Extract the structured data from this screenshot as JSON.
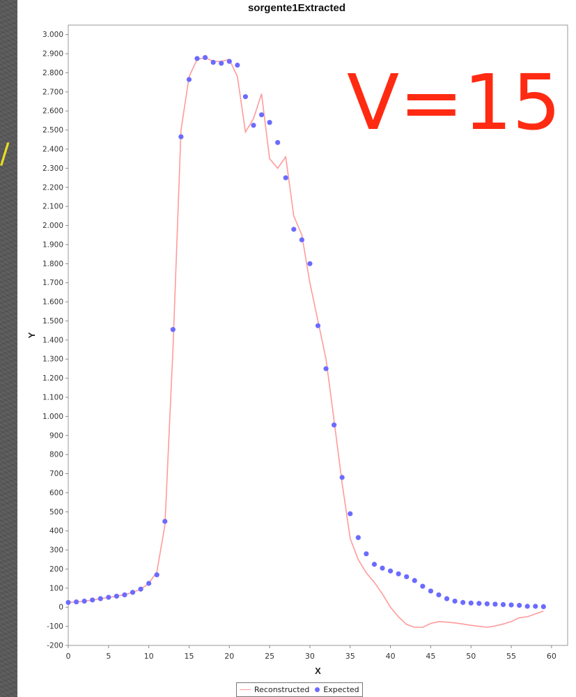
{
  "chart_data": {
    "type": "line",
    "title": "sorgente1Extracted",
    "xlabel": "X",
    "ylabel": "Y",
    "xlim": [
      0,
      62
    ],
    "ylim": [
      -200,
      3050
    ],
    "x_ticks": [
      0,
      5,
      10,
      15,
      20,
      25,
      30,
      35,
      40,
      45,
      50,
      55,
      60
    ],
    "y_ticks": [
      -200,
      -100,
      0,
      100,
      200,
      300,
      400,
      500,
      600,
      700,
      800,
      900,
      1000,
      1100,
      1200,
      1300,
      1400,
      1500,
      1600,
      1700,
      1800,
      1900,
      2000,
      2100,
      2200,
      2300,
      2400,
      2500,
      2600,
      2700,
      2800,
      2900,
      3000
    ],
    "y_tick_labels": [
      "-200",
      "-100",
      "0",
      "100",
      "200",
      "300",
      "400",
      "500",
      "600",
      "700",
      "800",
      "900",
      "1.000",
      "1.100",
      "1.200",
      "1.300",
      "1.400",
      "1.500",
      "1.600",
      "1.700",
      "1.800",
      "1.900",
      "2.000",
      "2.100",
      "2.200",
      "2.300",
      "2.400",
      "2.500",
      "2.600",
      "2.700",
      "2.800",
      "2.900",
      "3.000"
    ],
    "grid": false,
    "legend_position": "bottom",
    "series": [
      {
        "name": "Reconstructed",
        "style": "line",
        "color": "#ff9a9a",
        "x": [
          0,
          1,
          2,
          3,
          4,
          5,
          6,
          7,
          8,
          9,
          10,
          11,
          12,
          13,
          14,
          15,
          16,
          17,
          18,
          19,
          20,
          21,
          22,
          23,
          24,
          25,
          26,
          27,
          28,
          29,
          30,
          31,
          32,
          33,
          34,
          35,
          36,
          37,
          38,
          39,
          40,
          41,
          42,
          43,
          44,
          45,
          46,
          47,
          48,
          49,
          50,
          51,
          52,
          53,
          54,
          55,
          56,
          57,
          58,
          59
        ],
        "y": [
          25,
          28,
          32,
          38,
          45,
          52,
          58,
          66,
          78,
          95,
          125,
          185,
          430,
          1350,
          2500,
          2780,
          2870,
          2880,
          2860,
          2860,
          2870,
          2780,
          2490,
          2560,
          2690,
          2350,
          2300,
          2360,
          2050,
          1950,
          1700,
          1500,
          1300,
          980,
          650,
          360,
          250,
          180,
          130,
          70,
          0,
          -50,
          -90,
          -105,
          -105,
          -85,
          -75,
          -78,
          -82,
          -88,
          -95,
          -100,
          -105,
          -98,
          -88,
          -75,
          -55,
          -50,
          -35,
          -20
        ],
        "note": "values estimated from plot"
      },
      {
        "name": "Expected",
        "style": "points",
        "color": "#6b6bff",
        "x": [
          0,
          1,
          2,
          3,
          4,
          5,
          6,
          7,
          8,
          9,
          10,
          11,
          12,
          13,
          14,
          15,
          16,
          17,
          18,
          19,
          20,
          21,
          22,
          23,
          24,
          25,
          26,
          27,
          28,
          29,
          30,
          31,
          32,
          33,
          34,
          35,
          36,
          37,
          38,
          39,
          40,
          41,
          42,
          43,
          44,
          45,
          46,
          47,
          48,
          49,
          50,
          51,
          52,
          53,
          54,
          55,
          56,
          57,
          58,
          59
        ],
        "y": [
          25,
          28,
          32,
          38,
          45,
          52,
          58,
          65,
          78,
          95,
          125,
          170,
          450,
          1455,
          2465,
          2765,
          2875,
          2880,
          2855,
          2850,
          2860,
          2840,
          2675,
          2525,
          2580,
          2540,
          2435,
          2250,
          1980,
          1925,
          1800,
          1475,
          1250,
          955,
          680,
          490,
          365,
          280,
          225,
          205,
          190,
          175,
          160,
          140,
          110,
          85,
          65,
          45,
          32,
          25,
          22,
          20,
          18,
          16,
          14,
          12,
          10,
          5,
          5,
          3
        ]
      }
    ]
  },
  "annotation": {
    "text": "V=15",
    "color": "#ff2a12"
  },
  "legend": {
    "reconstructed_label": "Reconstructed",
    "expected_label": "Expected"
  }
}
